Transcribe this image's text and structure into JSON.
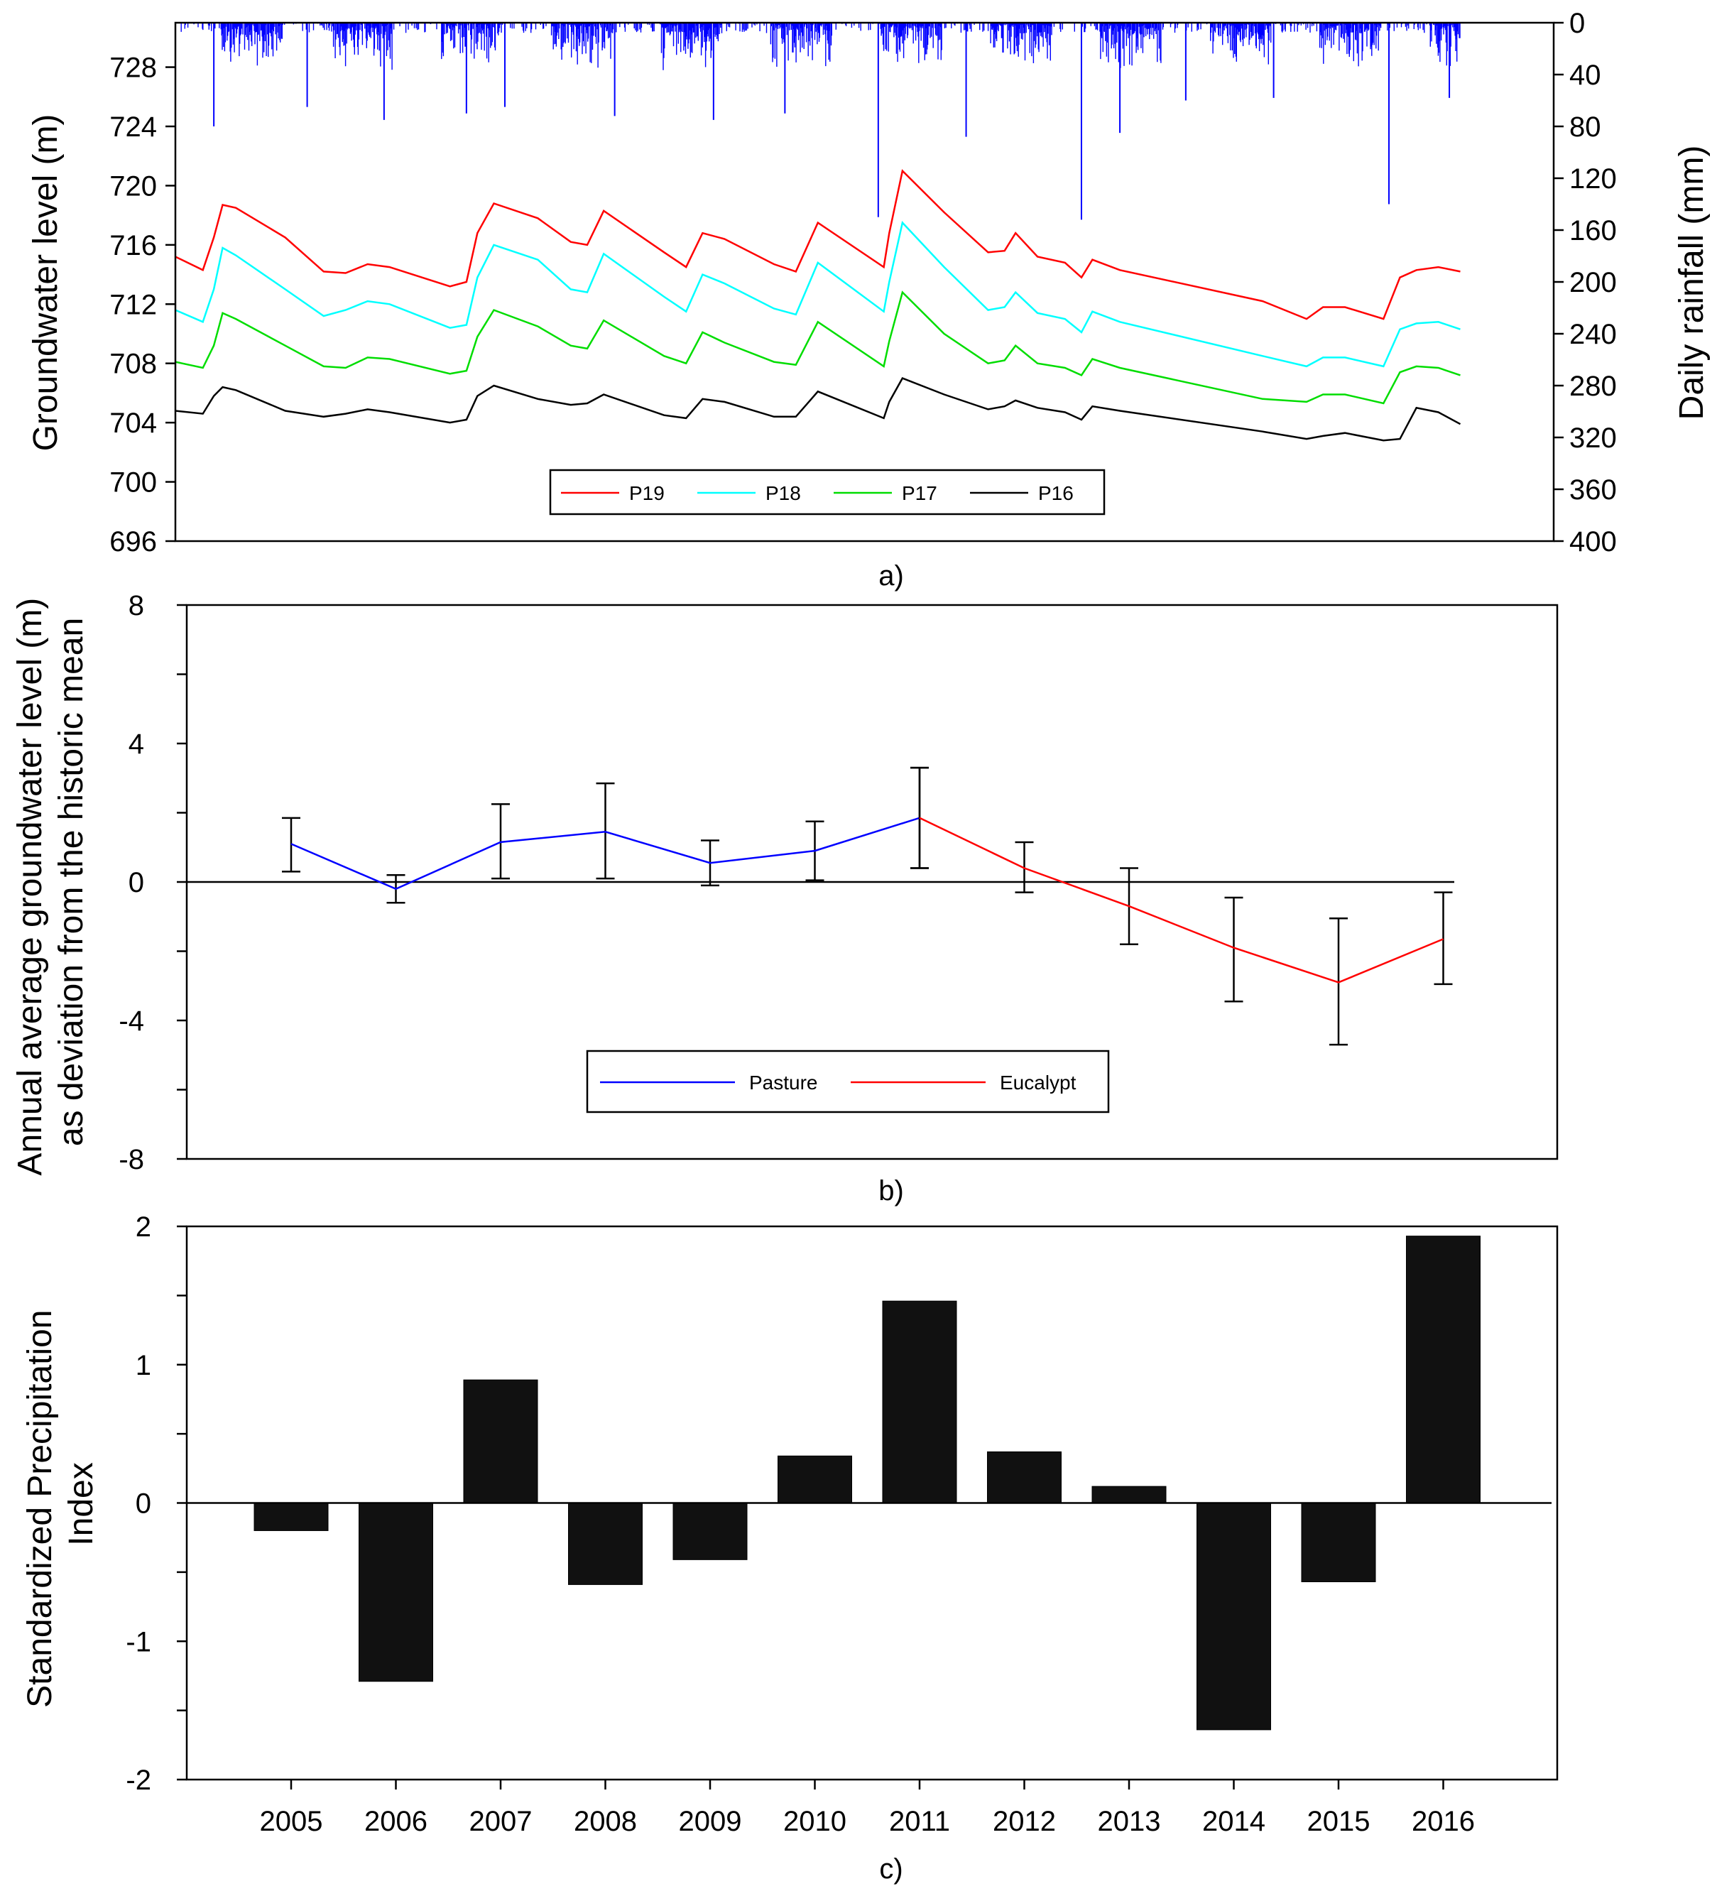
{
  "colors": {
    "rainfall": "#0000ff",
    "P19": "#ff0000",
    "P18": "#00ffff",
    "P17": "#00dd00",
    "P16": "#000000",
    "pasture": "#0000ff",
    "eucalypt": "#ff0000",
    "bar": "#111111"
  },
  "panel_labels": [
    "a)",
    "b)",
    "c)"
  ],
  "chart_data": [
    {
      "type": "line",
      "panel": "a",
      "ylabel": "Groundwater level (m)",
      "y2label": "Daily rainfall (mm)",
      "ylim": [
        696,
        731
      ],
      "yticks": [
        696,
        700,
        704,
        708,
        712,
        716,
        720,
        724,
        728
      ],
      "y2lim": [
        0,
        400
      ],
      "y2ticks": [
        0,
        40,
        80,
        120,
        160,
        200,
        240,
        280,
        320,
        360,
        400
      ],
      "y2_inverted": true,
      "xlim": [
        2004.3,
        2016.85
      ],
      "legend": [
        "P19",
        "P18",
        "P17",
        "P16"
      ],
      "legend_position": "bottom-center",
      "rainfall_peaks": [
        {
          "x": 2004.65,
          "y": 80
        },
        {
          "x": 2005.5,
          "y": 65
        },
        {
          "x": 2006.2,
          "y": 75
        },
        {
          "x": 2006.95,
          "y": 70
        },
        {
          "x": 2007.3,
          "y": 65
        },
        {
          "x": 2008.3,
          "y": 72
        },
        {
          "x": 2009.2,
          "y": 75
        },
        {
          "x": 2009.85,
          "y": 70
        },
        {
          "x": 2010.7,
          "y": 150
        },
        {
          "x": 2011.5,
          "y": 88
        },
        {
          "x": 2012.55,
          "y": 152
        },
        {
          "x": 2012.9,
          "y": 85
        },
        {
          "x": 2013.5,
          "y": 60
        },
        {
          "x": 2014.3,
          "y": 58
        },
        {
          "x": 2015.35,
          "y": 140
        },
        {
          "x": 2015.9,
          "y": 58
        }
      ],
      "series": [
        {
          "name": "P19",
          "x": [
            2004.3,
            2004.55,
            2004.65,
            2004.73,
            2004.85,
            2005.3,
            2005.65,
            2005.85,
            2006.05,
            2006.25,
            2006.8,
            2006.95,
            2007.05,
            2007.2,
            2007.6,
            2007.9,
            2008.05,
            2008.2,
            2008.75,
            2008.95,
            2009.1,
            2009.3,
            2009.75,
            2009.95,
            2010.15,
            2010.75,
            2010.8,
            2010.92,
            2011.3,
            2011.7,
            2011.85,
            2011.95,
            2012.15,
            2012.4,
            2012.55,
            2012.65,
            2012.9,
            2014.2,
            2014.6,
            2014.75,
            2014.95,
            2015.3,
            2015.45,
            2015.6,
            2015.8,
            2016.0
          ],
          "y": [
            715.2,
            714.3,
            716.5,
            718.7,
            718.5,
            716.5,
            714.2,
            714.1,
            714.7,
            714.5,
            713.2,
            713.5,
            716.8,
            718.8,
            717.8,
            716.2,
            716.0,
            718.3,
            715.5,
            714.5,
            716.8,
            716.4,
            714.7,
            714.2,
            717.5,
            714.5,
            716.8,
            721.0,
            718.2,
            715.5,
            715.6,
            716.8,
            715.2,
            714.8,
            713.8,
            715.0,
            714.3,
            712.2,
            711.0,
            711.8,
            711.8,
            711.0,
            713.8,
            714.3,
            714.5,
            714.2
          ]
        },
        {
          "name": "P18",
          "x": [
            2004.3,
            2004.55,
            2004.65,
            2004.73,
            2004.85,
            2005.3,
            2005.65,
            2005.85,
            2006.05,
            2006.25,
            2006.8,
            2006.95,
            2007.05,
            2007.2,
            2007.6,
            2007.9,
            2008.05,
            2008.2,
            2008.75,
            2008.95,
            2009.1,
            2009.3,
            2009.75,
            2009.95,
            2010.15,
            2010.75,
            2010.8,
            2010.92,
            2011.3,
            2011.7,
            2011.85,
            2011.95,
            2012.15,
            2012.4,
            2012.55,
            2012.65,
            2012.9,
            2014.2,
            2014.6,
            2014.75,
            2014.95,
            2015.3,
            2015.45,
            2015.6,
            2015.8,
            2016.0
          ],
          "y": [
            711.6,
            710.8,
            713.0,
            715.8,
            715.3,
            713.0,
            711.2,
            711.6,
            712.2,
            712.0,
            710.4,
            710.6,
            713.8,
            716.0,
            715.0,
            713.0,
            712.8,
            715.4,
            712.5,
            711.5,
            714.0,
            713.4,
            711.7,
            711.3,
            714.8,
            711.5,
            713.5,
            717.5,
            714.5,
            711.6,
            711.8,
            712.8,
            711.4,
            711.0,
            710.1,
            711.5,
            710.8,
            708.5,
            707.8,
            708.4,
            708.4,
            707.8,
            710.3,
            710.7,
            710.8,
            710.3
          ]
        },
        {
          "name": "P17",
          "x": [
            2004.3,
            2004.55,
            2004.65,
            2004.73,
            2004.85,
            2005.3,
            2005.65,
            2005.85,
            2006.05,
            2006.25,
            2006.8,
            2006.95,
            2007.05,
            2007.2,
            2007.6,
            2007.9,
            2008.05,
            2008.2,
            2008.75,
            2008.95,
            2009.1,
            2009.3,
            2009.75,
            2009.95,
            2010.15,
            2010.75,
            2010.8,
            2010.92,
            2011.3,
            2011.7,
            2011.85,
            2011.95,
            2012.15,
            2012.4,
            2012.55,
            2012.65,
            2012.9,
            2014.2,
            2014.6,
            2014.75,
            2014.95,
            2015.3,
            2015.45,
            2015.6,
            2015.8,
            2016.0
          ],
          "y": [
            708.1,
            707.7,
            709.2,
            711.4,
            711.0,
            709.2,
            707.8,
            707.7,
            708.4,
            708.3,
            707.3,
            707.5,
            709.8,
            711.6,
            710.5,
            709.2,
            709.0,
            710.9,
            708.5,
            708.0,
            710.1,
            709.4,
            708.1,
            707.9,
            710.8,
            707.8,
            709.5,
            712.8,
            710.0,
            708.0,
            708.2,
            709.2,
            708.0,
            707.7,
            707.2,
            708.3,
            707.7,
            705.6,
            705.4,
            705.9,
            705.9,
            705.3,
            707.4,
            707.8,
            707.7,
            707.2
          ]
        },
        {
          "name": "P16",
          "x": [
            2004.3,
            2004.55,
            2004.65,
            2004.73,
            2004.85,
            2005.3,
            2005.65,
            2005.85,
            2006.05,
            2006.25,
            2006.8,
            2006.95,
            2007.05,
            2007.2,
            2007.6,
            2007.9,
            2008.05,
            2008.2,
            2008.75,
            2008.95,
            2009.1,
            2009.3,
            2009.75,
            2009.95,
            2010.15,
            2010.75,
            2010.8,
            2010.92,
            2011.3,
            2011.7,
            2011.85,
            2011.95,
            2012.15,
            2012.4,
            2012.55,
            2012.65,
            2012.9,
            2014.2,
            2014.6,
            2014.75,
            2014.95,
            2015.3,
            2015.45,
            2015.6,
            2015.8,
            2016.0
          ],
          "y": [
            704.8,
            704.6,
            705.8,
            706.4,
            706.2,
            704.8,
            704.4,
            704.6,
            704.9,
            704.7,
            704.0,
            704.2,
            705.8,
            706.5,
            705.6,
            705.2,
            705.3,
            705.9,
            704.5,
            704.3,
            705.6,
            705.4,
            704.4,
            704.4,
            706.1,
            704.3,
            705.4,
            707.0,
            705.9,
            704.9,
            705.1,
            705.5,
            705.0,
            704.7,
            704.2,
            705.1,
            704.8,
            703.4,
            702.9,
            703.1,
            703.3,
            702.8,
            702.9,
            705.0,
            704.7,
            703.9
          ]
        }
      ]
    },
    {
      "type": "line",
      "panel": "b",
      "ylabel": "Annual average groundwater level (m)\nas deviation from the historic mean",
      "ylim": [
        -8,
        8
      ],
      "yticks": [
        -8,
        -4,
        0,
        4,
        8
      ],
      "legend": [
        "Pasture",
        "Eucalypt"
      ],
      "legend_position": "bottom-center",
      "series": [
        {
          "name": "Pasture",
          "x": [
            2005,
            2006,
            2007,
            2008,
            2009,
            2010,
            2011
          ],
          "y": [
            1.1,
            -0.2,
            1.15,
            1.45,
            0.55,
            0.9,
            1.85
          ],
          "err_low": [
            0.3,
            -0.6,
            0.1,
            0.1,
            -0.1,
            0.05,
            0.4
          ],
          "err_high": [
            1.85,
            0.2,
            2.25,
            2.85,
            1.2,
            1.75,
            3.3
          ]
        },
        {
          "name": "Eucalypt",
          "x": [
            2011,
            2012,
            2013,
            2014,
            2015,
            2016
          ],
          "y": [
            1.85,
            0.4,
            -0.7,
            -1.9,
            -2.9,
            -1.65
          ],
          "err_low": [
            0.4,
            -0.3,
            -1.8,
            -3.45,
            -4.7,
            -2.95
          ],
          "err_high": [
            3.3,
            1.15,
            0.4,
            -0.45,
            -1.05,
            -0.3
          ]
        }
      ]
    },
    {
      "type": "bar",
      "panel": "c",
      "ylabel": "Standardized Precipitation\nIndex",
      "ylim": [
        -2,
        2
      ],
      "yticks": [
        -2,
        -1,
        0,
        1,
        2
      ],
      "categories": [
        "2005",
        "2006",
        "2007",
        "2008",
        "2009",
        "2010",
        "2011",
        "2012",
        "2013",
        "2014",
        "2015",
        "2016"
      ],
      "values": [
        -0.2,
        -1.29,
        0.89,
        -0.59,
        -0.41,
        0.34,
        1.46,
        0.37,
        0.12,
        -1.64,
        -0.57,
        1.93
      ]
    }
  ]
}
